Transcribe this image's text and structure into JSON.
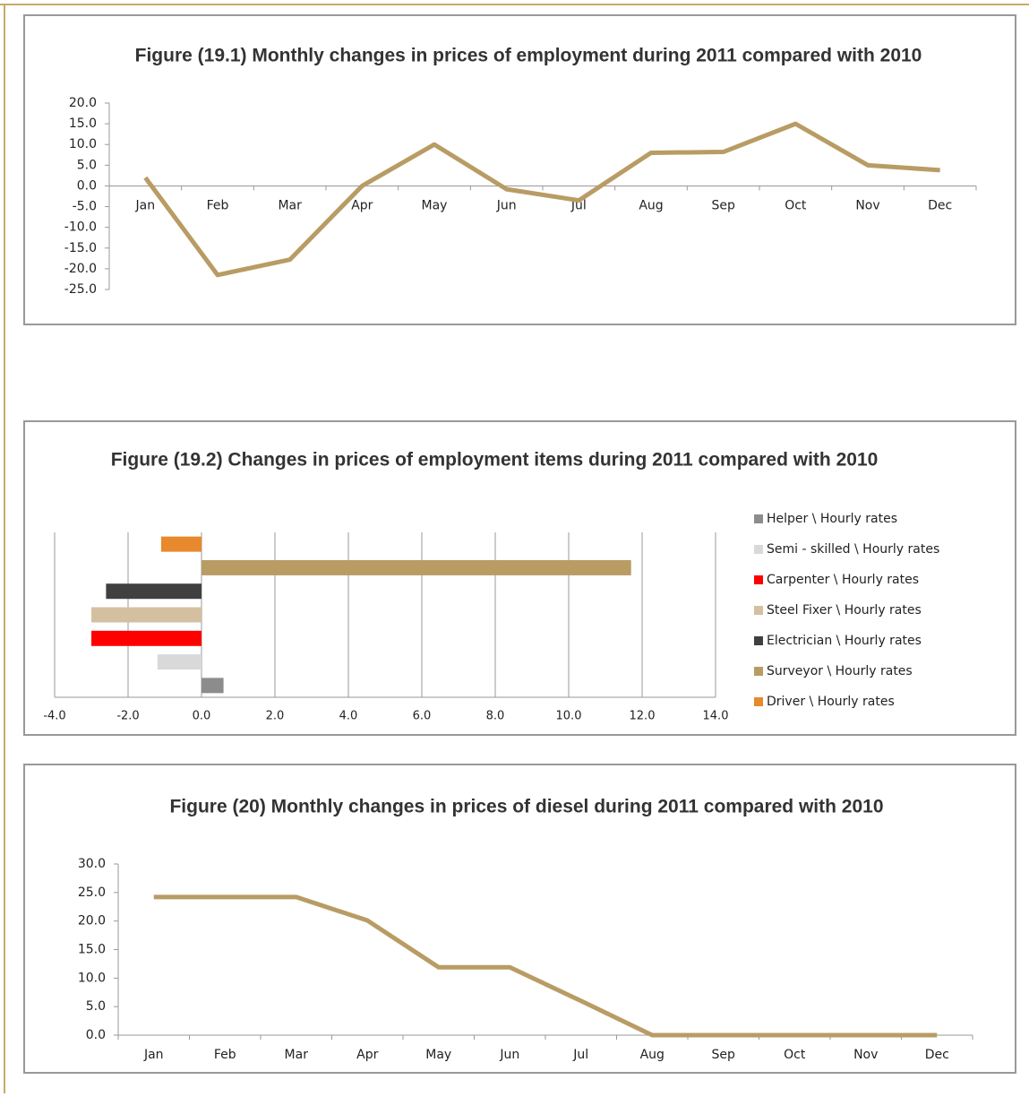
{
  "chart_data": [
    {
      "type": "line",
      "title": "Figure (19.1) Monthly changes in prices of employment during 2011 compared with 2010",
      "categories": [
        "Jan",
        "Feb",
        "Mar",
        "Apr",
        "May",
        "Jun",
        "Jul",
        "Aug",
        "Sep",
        "Oct",
        "Nov",
        "Dec"
      ],
      "values": [
        2.0,
        -21.5,
        -17.8,
        0.0,
        10.0,
        -0.8,
        -3.5,
        8.0,
        8.2,
        15.0,
        5.0,
        3.8
      ],
      "color": "#b89c64",
      "ylim": [
        -25,
        20
      ],
      "yticks": [
        {
          "value": 20,
          "label": "20.0"
        },
        {
          "value": 15,
          "label": "15.0"
        },
        {
          "value": 10,
          "label": "10.0"
        },
        {
          "value": 5,
          "label": "5.0"
        },
        {
          "value": 0,
          "label": "0.0"
        },
        {
          "value": -5,
          "label": "-5.0"
        },
        {
          "value": -10,
          "label": "-10.0"
        },
        {
          "value": -15,
          "label": "-15.0"
        },
        {
          "value": -20,
          "label": "-20.0"
        },
        {
          "value": -25,
          "label": "-25.0"
        }
      ]
    },
    {
      "type": "hbar",
      "title": "Figure (19.2) Changes in prices of employment  items during 2011 compared with 2010",
      "categories": [
        "Helper \\ Hourly rates",
        "Semi - skilled \\ Hourly rates",
        "Carpenter \\ Hourly rates",
        "Steel Fixer \\ Hourly rates",
        "Electrician \\ Hourly rates",
        "Surveyor \\ Hourly rates",
        "Driver \\ Hourly rates"
      ],
      "values": [
        0.6,
        -1.2,
        -3.0,
        -3.0,
        -2.6,
        11.7,
        -1.1
      ],
      "colors": [
        "#8c8c8c",
        "#d9d9d9",
        "#ff0000",
        "#d4c0a0",
        "#404040",
        "#b89c64",
        "#e8892e"
      ],
      "xlim": [
        -4,
        14
      ],
      "xticks": [
        {
          "value": -4,
          "label": "-4.0"
        },
        {
          "value": -2,
          "label": "-2.0"
        },
        {
          "value": 0,
          "label": "0.0"
        },
        {
          "value": 2,
          "label": "2.0"
        },
        {
          "value": 4,
          "label": "4.0"
        },
        {
          "value": 6,
          "label": "6.0"
        },
        {
          "value": 8,
          "label": "8.0"
        },
        {
          "value": 10,
          "label": "10.0"
        },
        {
          "value": 12,
          "label": "12.0"
        },
        {
          "value": 14,
          "label": "14.0"
        }
      ],
      "grid": true,
      "legend": "right"
    },
    {
      "type": "line",
      "title": "Figure (20) Monthly changes in prices of diesel during 2011 compared with 2010",
      "categories": [
        "Jan",
        "Feb",
        "Mar",
        "Apr",
        "May",
        "Jun",
        "Jul",
        "Aug",
        "Sep",
        "Oct",
        "Nov",
        "Dec"
      ],
      "values": [
        24.2,
        24.2,
        24.2,
        20.1,
        11.9,
        11.9,
        6.0,
        0.0,
        0.0,
        0.0,
        0.0,
        0.0
      ],
      "color": "#b89c64",
      "ylim": [
        0,
        30
      ],
      "yticks": [
        {
          "value": 30,
          "label": "30.0"
        },
        {
          "value": 25,
          "label": "25.0"
        },
        {
          "value": 20,
          "label": "20.0"
        },
        {
          "value": 15,
          "label": "15.0"
        },
        {
          "value": 10,
          "label": "10.0"
        },
        {
          "value": 5,
          "label": "5.0"
        },
        {
          "value": 0,
          "label": "0.0"
        }
      ]
    }
  ]
}
